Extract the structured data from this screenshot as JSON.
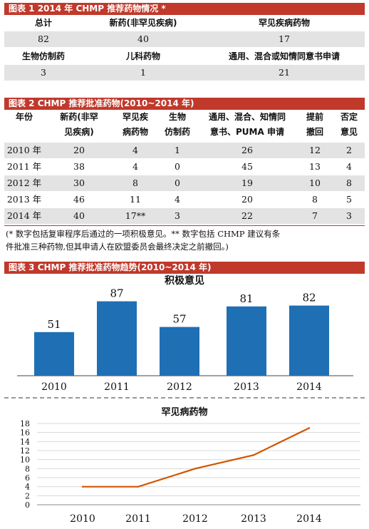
{
  "table1": {
    "title": "图表 1   2014 年 CHMP 推荐药物情况 *",
    "header1": [
      "总计",
      "新药(非罕见疾病)",
      "罕见疾病药物"
    ],
    "values1": [
      "82",
      "40",
      "17"
    ],
    "header2": [
      "生物仿制药",
      "儿科药物",
      "通用、混合或知情同意书申请"
    ],
    "values2": [
      "3",
      "1",
      "21"
    ]
  },
  "table2": {
    "title": "图表 2   CHMP 推荐批准药物(2010~2014 年)",
    "columns": [
      "年份",
      "新药(非罕见疾病)",
      "罕见疾病药物",
      "生物仿制药",
      "通用、混合、知情同意书、PUMA 申请",
      "提前撤回",
      "否定意见"
    ],
    "col_lines": [
      [
        "年份",
        ""
      ],
      [
        "新药(非罕",
        "见疾病)"
      ],
      [
        "罕见疾",
        "病药物"
      ],
      [
        "生物",
        "仿制药"
      ],
      [
        "通用、混合、知情同",
        "意书、PUMA 申请"
      ],
      [
        "提前",
        "撤回"
      ],
      [
        "否定",
        "意见"
      ]
    ],
    "rows": [
      [
        "2010 年",
        "20",
        "4",
        "1",
        "26",
        "12",
        "2"
      ],
      [
        "2011 年",
        "38",
        "4",
        "0",
        "45",
        "13",
        "4"
      ],
      [
        "2012 年",
        "30",
        "8",
        "0",
        "19",
        "10",
        "8"
      ],
      [
        "2013 年",
        "46",
        "11",
        "4",
        "20",
        "8",
        "5"
      ],
      [
        "2014 年",
        "40",
        "17**",
        "3",
        "22",
        "7",
        "3"
      ]
    ],
    "note_line1": "(* 数字包括复审程序后通过的一项积极意见。** 数字包括 CHMP 建议有条",
    "note_line2": "件批准三种药物,但其申请人在欧盟委员会最终决定之前撤回。)"
  },
  "chart_data": [
    {
      "type": "bar",
      "figure_title": "图表 3   CHMP 推荐批准药物趋势(2010~2014 年)",
      "title": "积极意见",
      "categories": [
        "2010",
        "2011",
        "2012",
        "2013",
        "2014"
      ],
      "values": [
        51,
        87,
        57,
        81,
        82
      ],
      "color": "#1f6fb5",
      "data_labels": true
    },
    {
      "type": "line",
      "title": "罕见病药物",
      "categories": [
        "2010",
        "2011",
        "2012",
        "2013",
        "2014"
      ],
      "values": [
        4,
        4,
        8,
        11,
        17
      ],
      "ylim": [
        0,
        18
      ],
      "yticks": [
        0,
        2,
        4,
        6,
        8,
        10,
        12,
        14,
        16,
        18
      ],
      "grid": true,
      "color": "#d35400"
    }
  ],
  "colors": {
    "header_red": "#c0392b",
    "row_grey": "#e3e3e3",
    "bar_blue": "#1f6fb5",
    "line_orange": "#d35400"
  }
}
